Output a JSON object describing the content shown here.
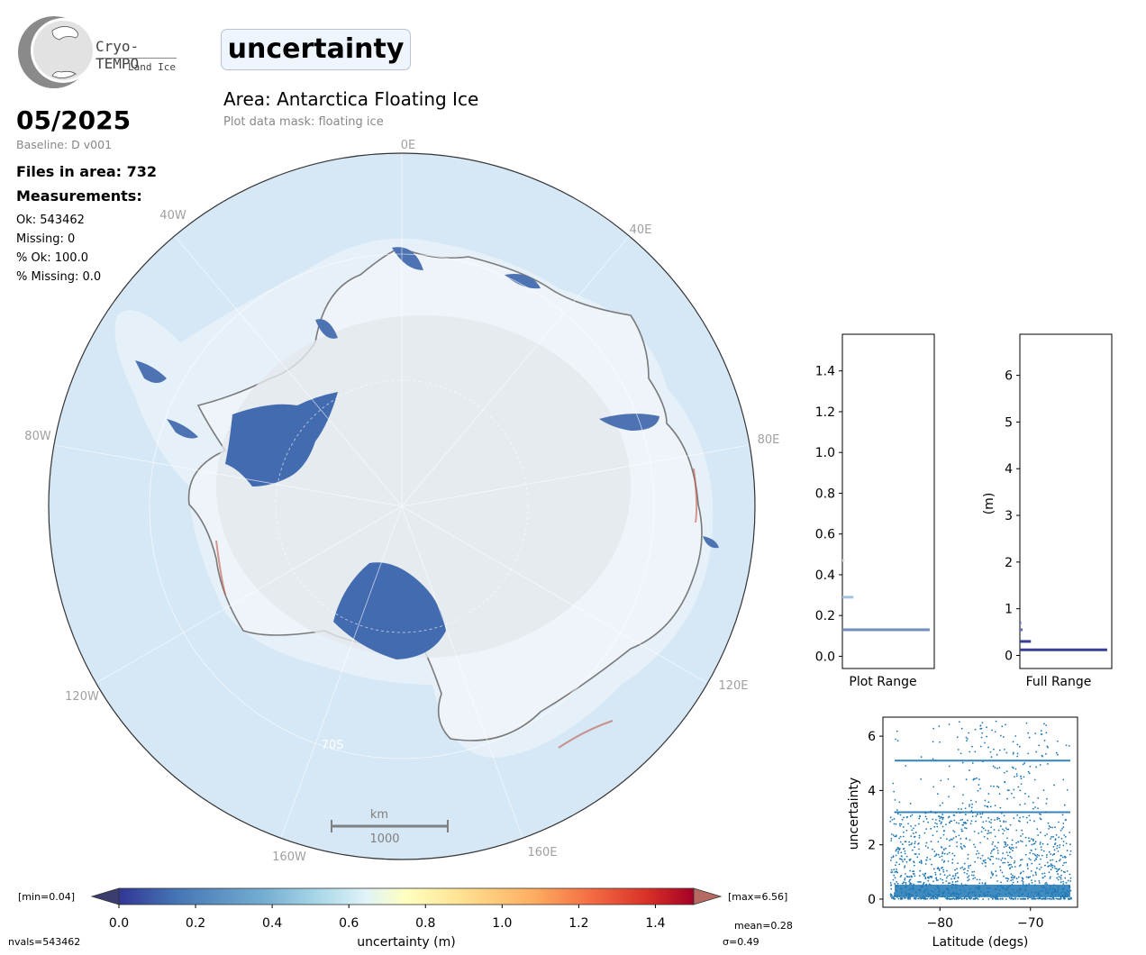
{
  "header": {
    "logo_text": "Cryo-TEMPO",
    "logo_subtext": "Land Ice",
    "title": "uncertainty",
    "area_title": "Area: Antarctica Floating Ice",
    "mask_text": "Plot data mask: floating ice"
  },
  "info": {
    "date": "05/2025",
    "baseline": "Baseline: D v001",
    "files": "Files in area: 732",
    "measurements_heading": "Measurements:",
    "ok": "Ok: 543462",
    "missing": "Missing: 0",
    "pct_ok": "% Ok: 100.0",
    "pct_missing": "% Missing: 0.0"
  },
  "map": {
    "lon_labels": [
      "0E",
      "40E",
      "80E",
      "120E",
      "160E",
      "160W",
      "120W",
      "80W",
      "40W"
    ],
    "lat_label": "70S",
    "scale_unit": "km",
    "scale_value": "1000",
    "colors": {
      "ocean": "#d6e7f5",
      "ice": "#eef4f9",
      "coast": "#7a7a7a",
      "data": "#3a64ac"
    }
  },
  "colorbar": {
    "label": "uncertainty (m)",
    "ticks": [
      "0.0",
      "0.2",
      "0.4",
      "0.6",
      "0.8",
      "1.0",
      "1.2",
      "1.4"
    ],
    "min_text": "[min=0.04]",
    "max_text": "[max=6.56]",
    "mean_text": "mean=0.28",
    "sigma_text": "σ=0.49",
    "nvals_text": "nvals=543462",
    "colors": [
      "#313695",
      "#4575b4",
      "#74add1",
      "#abd9e9",
      "#e0f3f8",
      "#ffffbf",
      "#fee090",
      "#fdae61",
      "#f46d43",
      "#d73027",
      "#a50026"
    ]
  },
  "chart_data": [
    {
      "type": "bar",
      "orientation": "horizontal",
      "xlabel": "Plot Range",
      "ylabel": "",
      "ylim": [
        -0.06,
        1.58
      ],
      "yticks": [
        "0.0",
        "0.2",
        "0.4",
        "0.6",
        "0.8",
        "1.0",
        "1.2",
        "1.4"
      ],
      "bins": [
        {
          "y": 0.13,
          "rel_count": 0.95,
          "color": "#6f8fbf"
        },
        {
          "y": 0.29,
          "rel_count": 0.12,
          "color": "#a6c2dc"
        },
        {
          "y": 0.47,
          "rel_count": 0.02,
          "color": "#cfdce9"
        }
      ]
    },
    {
      "type": "bar",
      "orientation": "horizontal",
      "xlabel": "Full Range",
      "ylabel": "(m)",
      "ylim": [
        -0.28,
        6.88
      ],
      "yticks": [
        "0",
        "1",
        "2",
        "3",
        "4",
        "5",
        "6"
      ],
      "bins": [
        {
          "y": 0.12,
          "rel_count": 0.95,
          "color": "#3a3f96"
        },
        {
          "y": 0.3,
          "rel_count": 0.12,
          "color": "#3a3f96"
        },
        {
          "y": 0.55,
          "rel_count": 0.03,
          "color": "#6070b0"
        },
        {
          "y": 0.7,
          "rel_count": 0.015,
          "color": "#6070b0"
        }
      ]
    },
    {
      "type": "scatter",
      "xlabel": "Latitude (degs)",
      "ylabel": "uncertainty",
      "xlim": [
        -86.3,
        -64.8
      ],
      "ylim": [
        -0.3,
        6.7
      ],
      "xticks": [
        "−80",
        "−70"
      ],
      "yticks": [
        "0",
        "2",
        "4",
        "6"
      ],
      "x_range": [
        -85.5,
        -65.5
      ],
      "y_range": [
        0.0,
        6.56
      ],
      "color": "#1f77b4",
      "bands_y": [
        5.1,
        3.2,
        0.3
      ]
    }
  ]
}
